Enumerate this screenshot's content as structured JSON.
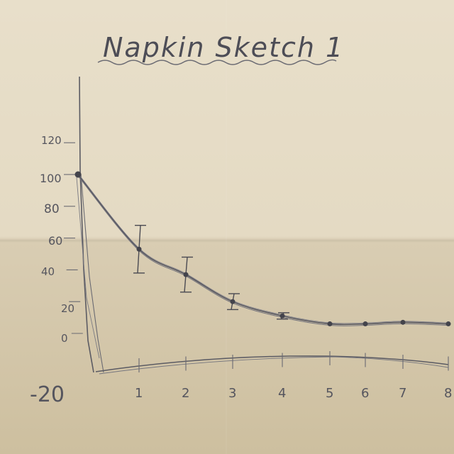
{
  "title": "Napkin Sketch 1",
  "colors": {
    "pencil": "#4a4a52",
    "paper": "#e6dcc6"
  },
  "chart_data": {
    "type": "line",
    "title": "Napkin Sketch 1",
    "xlabel": "",
    "ylabel": "",
    "xlim": [
      0,
      8
    ],
    "ylim": [
      -20,
      120
    ],
    "x_ticks": [
      "1",
      "2",
      "3",
      "4",
      "5",
      "6",
      "7",
      "8"
    ],
    "y_ticks": [
      "120",
      "100",
      "80",
      "60",
      "40",
      "20",
      "0",
      "-20"
    ],
    "grid": false,
    "legend": "none",
    "series": [
      {
        "points": [
          {
            "x": 0,
            "y": 100
          },
          {
            "x": 1,
            "y": 53,
            "err": 15
          },
          {
            "x": 2,
            "y": 37,
            "err": 11
          },
          {
            "x": 3,
            "y": 20,
            "err": 5
          },
          {
            "x": 4,
            "y": 11,
            "err": 2
          },
          {
            "x": 5,
            "y": 6
          },
          {
            "x": 6,
            "y": 6
          },
          {
            "x": 7,
            "y": 7
          },
          {
            "x": 8,
            "y": 6
          }
        ]
      }
    ]
  }
}
